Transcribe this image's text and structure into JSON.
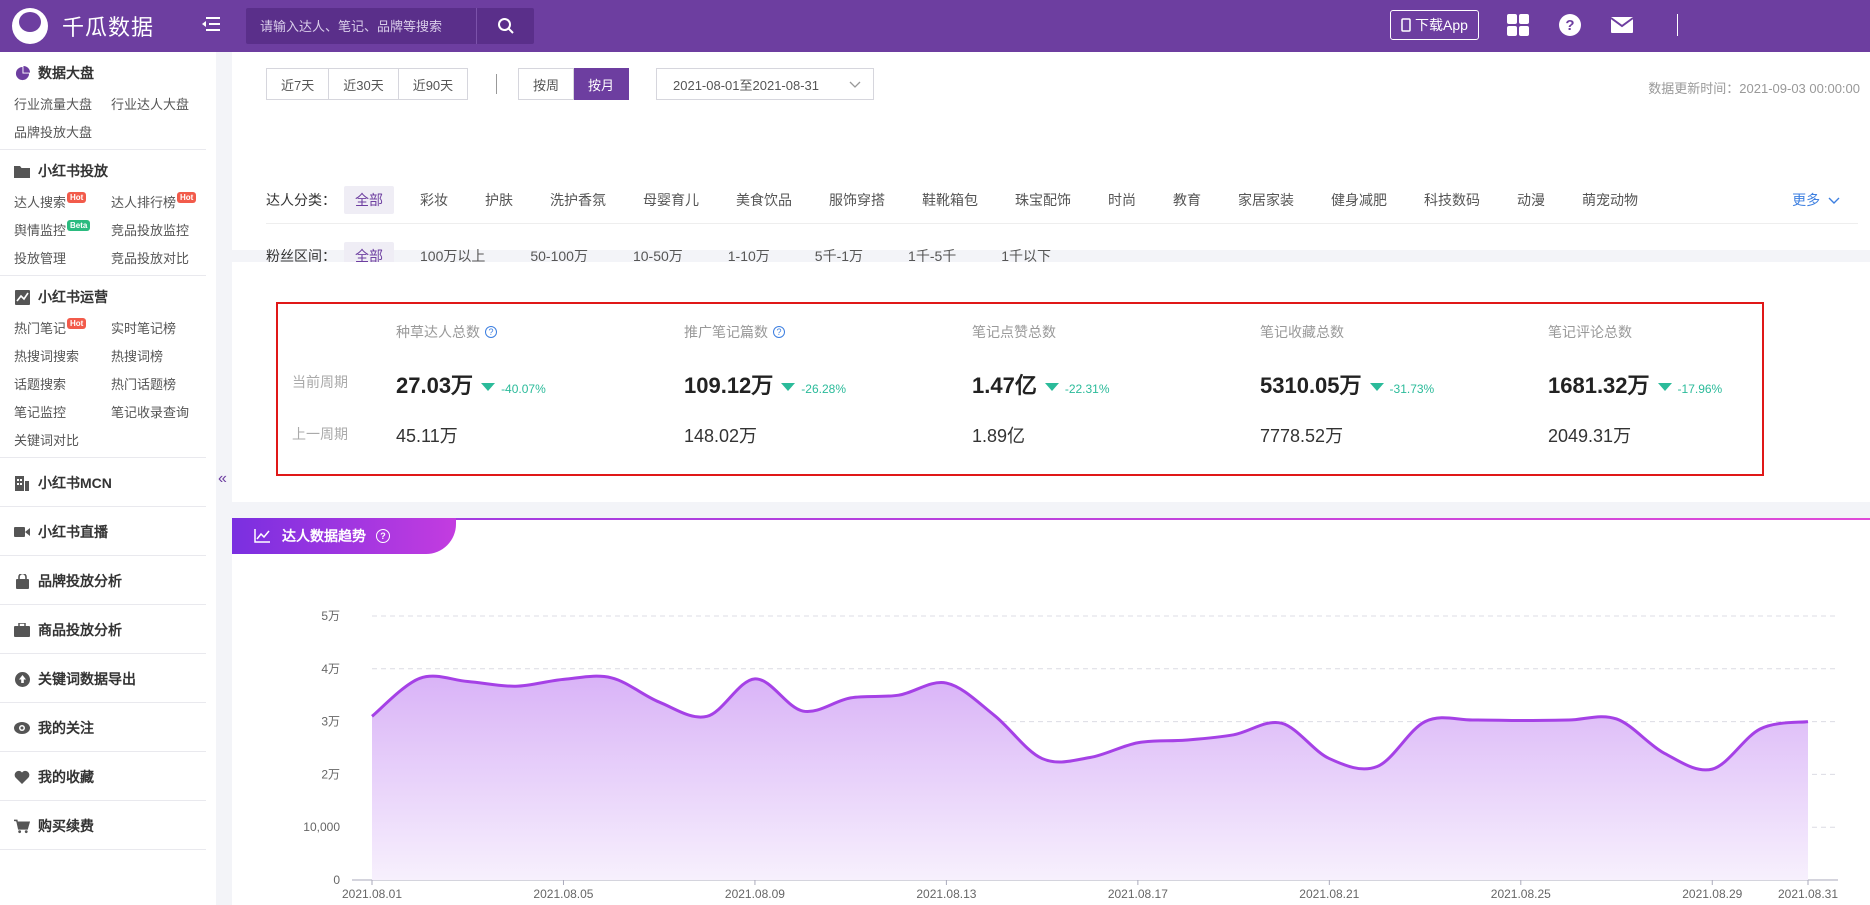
{
  "brand": {
    "name": "千瓜数据"
  },
  "search": {
    "placeholder": "请输入达人、笔记、品牌等搜索"
  },
  "topbar": {
    "download_label": "下载App"
  },
  "sidebar": {
    "sections": [
      {
        "title": "数据大盘",
        "icon": "pie-chart-icon",
        "links": [
          "行业流量大盘",
          "行业达人大盘",
          "品牌投放大盘"
        ]
      },
      {
        "title": "小红书投放",
        "icon": "folder-icon",
        "links": [
          "达人搜索",
          "达人排行榜",
          "舆情监控",
          "竞品投放监控",
          "投放管理",
          "竞品投放对比"
        ],
        "badges": {
          "0": "Hot",
          "1": "Hot",
          "2": "Beta"
        }
      },
      {
        "title": "小红书运营",
        "icon": "trend-chart-icon",
        "links": [
          "热门笔记",
          "实时笔记榜",
          "热搜词搜索",
          "热搜词榜",
          "话题搜索",
          "热门话题榜",
          "笔记监控",
          "笔记收录查询",
          "关键词对比"
        ],
        "badges": {
          "0": "Hot"
        }
      }
    ],
    "single_items": [
      {
        "title": "小红书MCN",
        "icon": "building-icon"
      },
      {
        "title": "小红书直播",
        "icon": "video-icon"
      },
      {
        "title": "品牌投放分析",
        "icon": "bag-icon"
      },
      {
        "title": "商品投放分析",
        "icon": "briefcase-icon"
      },
      {
        "title": "关键词数据导出",
        "icon": "upload-icon"
      },
      {
        "title": "我的关注",
        "icon": "eye-icon"
      },
      {
        "title": "我的收藏",
        "icon": "heart-icon"
      },
      {
        "title": "购买续费",
        "icon": "cart-icon"
      }
    ]
  },
  "filters": {
    "range_buttons": [
      "近7天",
      "近30天",
      "近90天"
    ],
    "period_buttons": [
      "按周",
      "按月"
    ],
    "period_active": "按月",
    "date_range": "2021-08-01至2021-08-31",
    "update_time": "数据更新时间：2021-09-03 00:00:00",
    "category_label": "达人分类：",
    "categories": [
      "全部",
      "彩妆",
      "护肤",
      "洗护香氛",
      "母婴育儿",
      "美食饮品",
      "服饰穿搭",
      "鞋靴箱包",
      "珠宝配饰",
      "时尚",
      "教育",
      "家居家装",
      "健身减肥",
      "科技数码",
      "动漫",
      "萌宠动物"
    ],
    "more_label": "更多",
    "fans_label": "粉丝区间：",
    "fans_ranges": [
      "全部",
      "100万以上",
      "50-100万",
      "10-50万",
      "1-10万",
      "5千-1万",
      "1千-5千",
      "1千以下"
    ]
  },
  "stats": {
    "row_current": "当前周期",
    "row_previous": "上一周期",
    "columns": [
      {
        "title": "种草达人总数",
        "help": true,
        "current": "27.03万",
        "change": "-40.07%",
        "previous": "45.11万"
      },
      {
        "title": "推广笔记篇数",
        "help": true,
        "current": "109.12万",
        "change": "-26.28%",
        "previous": "148.02万"
      },
      {
        "title": "笔记点赞总数",
        "help": false,
        "current": "1.47亿",
        "change": "-22.31%",
        "previous": "1.89亿"
      },
      {
        "title": "笔记收藏总数",
        "help": false,
        "current": "5310.05万",
        "change": "-31.73%",
        "previous": "7778.52万"
      },
      {
        "title": "笔记评论总数",
        "help": false,
        "current": "1681.32万",
        "change": "-17.96%",
        "previous": "2049.31万"
      }
    ]
  },
  "chart_tab": {
    "title": "达人数据趋势"
  },
  "chart_data": {
    "type": "area",
    "title": "",
    "y_tick_labels": [
      "0",
      "10,000",
      "2万",
      "3万",
      "4万",
      "5万"
    ],
    "ylim": [
      0,
      50000
    ],
    "x_tick_labels": [
      "2021.08.01",
      "2021.08.05",
      "2021.08.09",
      "2021.08.13",
      "2021.08.17",
      "2021.08.21",
      "2021.08.25",
      "2021.08.29",
      "2021.08.31"
    ],
    "x": [
      "2021.08.01",
      "2021.08.02",
      "2021.08.03",
      "2021.08.04",
      "2021.08.05",
      "2021.08.06",
      "2021.08.07",
      "2021.08.08",
      "2021.08.09",
      "2021.08.10",
      "2021.08.11",
      "2021.08.12",
      "2021.08.13",
      "2021.08.14",
      "2021.08.15",
      "2021.08.16",
      "2021.08.17",
      "2021.08.18",
      "2021.08.19",
      "2021.08.20",
      "2021.08.21",
      "2021.08.22",
      "2021.08.23",
      "2021.08.24",
      "2021.08.25",
      "2021.08.26",
      "2021.08.27",
      "2021.08.28",
      "2021.08.29",
      "2021.08.30",
      "2021.08.31"
    ],
    "series": [
      {
        "values": [
          31000,
          38200,
          37600,
          36700,
          38000,
          38300,
          33700,
          31000,
          38100,
          32000,
          34500,
          35000,
          37300,
          31200,
          23000,
          23200,
          26000,
          26500,
          27500,
          29700,
          23000,
          21500,
          30000,
          30300,
          30200,
          30300,
          30500,
          24000,
          21000,
          28600,
          30000
        ]
      }
    ],
    "colors": {
      "line": "#a541e6",
      "fill_top": "#d9b3f7",
      "fill_bottom": "#f7f0fd"
    },
    "grid": true
  }
}
